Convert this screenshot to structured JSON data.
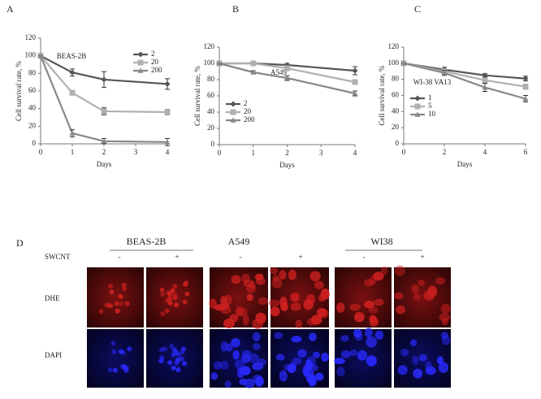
{
  "chart_data": [
    {
      "type": "line",
      "panel": "A",
      "title": "BEAS-2B",
      "x_label": "Days",
      "y_label": "Cell survival rate, %",
      "x": [
        0,
        1,
        2,
        4
      ],
      "xlim": [
        0,
        4
      ],
      "xticks": [
        0,
        1,
        2,
        3,
        4
      ],
      "ylim": [
        0,
        120
      ],
      "yticks": [
        0,
        20,
        40,
        60,
        80,
        100,
        120
      ],
      "legend": "upper right",
      "series": [
        {
          "name": "2",
          "color": "#555555",
          "marker": "diamond",
          "values": [
            100,
            81,
            73,
            68
          ],
          "errors": [
            0,
            4,
            9,
            6
          ]
        },
        {
          "name": "20",
          "color": "#b0b0b0",
          "marker": "square",
          "values": [
            100,
            58,
            37,
            36
          ],
          "errors": [
            0,
            2,
            4,
            3
          ]
        },
        {
          "name": "200",
          "color": "#888888",
          "marker": "triangle",
          "values": [
            100,
            12,
            3,
            2
          ],
          "errors": [
            0,
            4,
            3,
            4
          ]
        }
      ]
    },
    {
      "type": "line",
      "panel": "B",
      "title": "A549",
      "x_label": "Days",
      "y_label": "Cell survival rate, %",
      "x": [
        0,
        1,
        2,
        4
      ],
      "xlim": [
        0,
        4
      ],
      "xticks": [
        0,
        1,
        2,
        3,
        4
      ],
      "ylim": [
        0,
        120
      ],
      "yticks": [
        0,
        20,
        40,
        60,
        80,
        100,
        120
      ],
      "legend": "center left",
      "series": [
        {
          "name": "2",
          "color": "#555555",
          "marker": "diamond",
          "values": [
            100,
            100,
            98,
            91
          ],
          "errors": [
            0,
            1,
            2,
            5
          ]
        },
        {
          "name": "20",
          "color": "#b0b0b0",
          "marker": "square",
          "values": [
            100,
            100,
            94,
            77
          ],
          "errors": [
            0,
            1,
            2,
            2
          ]
        },
        {
          "name": "200",
          "color": "#888888",
          "marker": "triangle",
          "values": [
            100,
            89,
            82,
            63
          ],
          "errors": [
            0,
            2,
            3,
            3
          ]
        }
      ]
    },
    {
      "type": "line",
      "panel": "C",
      "title": "WI-38 VA13",
      "x_label": "Days",
      "y_label": "Cell survival rate, %",
      "x": [
        0,
        2,
        4,
        6
      ],
      "xlim": [
        0,
        6
      ],
      "xticks": [
        0,
        2,
        4,
        6
      ],
      "ylim": [
        0,
        120
      ],
      "yticks": [
        0,
        20,
        40,
        60,
        80,
        100,
        120
      ],
      "legend": "lower left",
      "series": [
        {
          "name": "1",
          "color": "#555555",
          "marker": "diamond",
          "values": [
            100,
            92,
            85,
            81
          ],
          "errors": [
            0,
            3,
            2,
            3
          ]
        },
        {
          "name": "5",
          "color": "#b0b0b0",
          "marker": "square",
          "values": [
            100,
            90,
            79,
            71
          ],
          "errors": [
            0,
            3,
            4,
            3
          ]
        },
        {
          "name": "10",
          "color": "#888888",
          "marker": "triangle",
          "values": [
            100,
            88,
            70,
            56
          ],
          "errors": [
            0,
            3,
            5,
            4
          ]
        }
      ]
    }
  ],
  "panel_d": {
    "label": "D",
    "treatment": "SWCNT",
    "cell_lines": [
      "BEAS-2B",
      "A549",
      "WI38"
    ],
    "conditions": [
      "-",
      "+",
      "-",
      "+",
      "-",
      "+"
    ],
    "stains": [
      "DHE",
      "DAPI"
    ]
  }
}
